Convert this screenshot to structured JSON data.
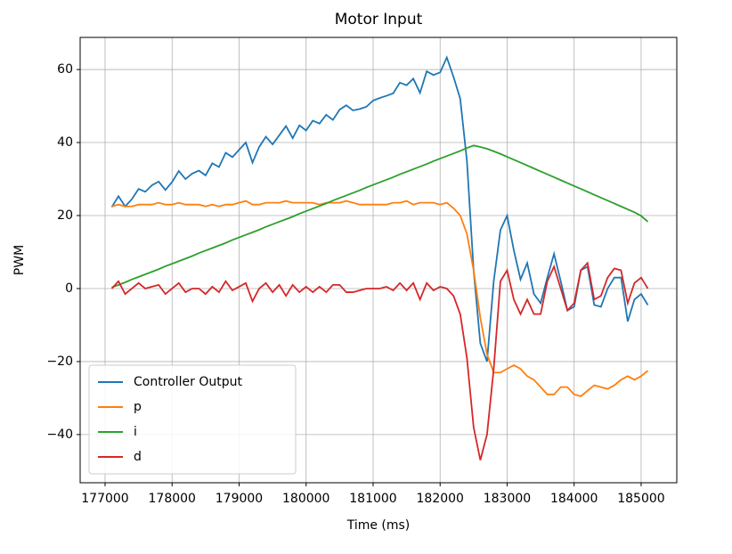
{
  "chart_data": {
    "type": "line",
    "title": "Motor Input",
    "x_label": "Time (ms)",
    "y_label": "PWM",
    "x": [
      177100,
      177200,
      177300,
      177400,
      177500,
      177600,
      177700,
      177800,
      177900,
      178000,
      178100,
      178200,
      178300,
      178400,
      178500,
      178600,
      178700,
      178800,
      178900,
      179000,
      179100,
      179200,
      179300,
      179400,
      179500,
      179600,
      179700,
      179800,
      179900,
      180000,
      180100,
      180200,
      180300,
      180400,
      180500,
      180600,
      180700,
      180800,
      180900,
      181000,
      181100,
      181200,
      181300,
      181400,
      181500,
      181600,
      181700,
      181800,
      181900,
      182000,
      182100,
      182200,
      182300,
      182400,
      182500,
      182600,
      182700,
      182800,
      182900,
      183000,
      183100,
      183200,
      183300,
      183400,
      183500,
      183600,
      183700,
      183800,
      183900,
      184000,
      184100,
      184200,
      184300,
      184400,
      184500,
      184600,
      184700,
      184800,
      184900,
      185000,
      185100
    ],
    "series": [
      {
        "name": "Controller Output",
        "color": "#1f77b4",
        "values": [
          22.3,
          25.3,
          22.5,
          24.5,
          27.3,
          26.5,
          28.3,
          29.3,
          27.0,
          29.2,
          32.2,
          30.0,
          31.5,
          32.3,
          31.0,
          34.3,
          33.3,
          37.2,
          36.0,
          38.0,
          40.0,
          34.5,
          38.8,
          41.6,
          39.5,
          42.0,
          44.5,
          41.2,
          44.7,
          43.3,
          46.0,
          45.2,
          47.6,
          46.2,
          49.0,
          50.2,
          48.8,
          49.2,
          49.8,
          51.5,
          52.2,
          52.8,
          53.5,
          56.4,
          55.7,
          57.5,
          53.6,
          59.5,
          58.5,
          59.2,
          63.3,
          58,
          52,
          35,
          5,
          -15,
          -20,
          2,
          16,
          20,
          10.5,
          2.5,
          7,
          -1.5,
          -4,
          3,
          9.5,
          2,
          -6,
          -5,
          5,
          6,
          -4.5,
          -5,
          0,
          3,
          3,
          -9,
          -3,
          -1.5,
          -4.5
        ]
      },
      {
        "name": "p",
        "color": "#ff7f0e",
        "values": [
          22.5,
          23,
          22.5,
          22.5,
          23,
          23,
          23,
          23.5,
          23,
          23,
          23.5,
          23,
          23,
          23,
          22.5,
          23,
          22.5,
          23,
          23,
          23.5,
          24,
          23,
          23,
          23.5,
          23.5,
          23.5,
          24,
          23.5,
          23.5,
          23.5,
          23.5,
          23,
          23.5,
          23.5,
          23.5,
          24,
          23.5,
          23,
          23,
          23,
          23,
          23,
          23.5,
          23.5,
          24,
          23,
          23.5,
          23.5,
          23.5,
          23,
          23.5,
          22,
          20,
          15,
          5,
          -8,
          -18,
          -23,
          -23,
          -22,
          -21,
          -22,
          -24,
          -25,
          -27,
          -29,
          -29,
          -27,
          -27,
          -29,
          -29.5,
          -28,
          -26.5,
          -27,
          -27.5,
          -26.5,
          -25,
          -24,
          -25,
          -24,
          -22.5
        ]
      },
      {
        "name": "i",
        "color": "#2ca02c",
        "values": [
          0.3,
          1.0,
          1.7,
          2.5,
          3.2,
          3.9,
          4.6,
          5.3,
          6.1,
          6.8,
          7.5,
          8.2,
          8.9,
          9.7,
          10.4,
          11.1,
          11.8,
          12.5,
          13.3,
          14.0,
          14.7,
          15.4,
          16.1,
          16.9,
          17.6,
          18.3,
          19.0,
          19.7,
          20.5,
          21.2,
          21.9,
          22.6,
          23.3,
          24.1,
          24.8,
          25.5,
          26.2,
          26.9,
          27.7,
          28.4,
          29.1,
          29.8,
          30.5,
          31.3,
          32.0,
          32.7,
          33.4,
          34.1,
          34.9,
          35.6,
          36.3,
          37.0,
          37.7,
          38.5,
          39.2,
          38.8,
          38.3,
          37.6,
          36.9,
          36.1,
          35.3,
          34.5,
          33.7,
          32.9,
          32.1,
          31.3,
          30.5,
          29.7,
          28.9,
          28.1,
          27.3,
          26.5,
          25.7,
          24.9,
          24.1,
          23.3,
          22.5,
          21.7,
          20.9,
          19.9,
          18.3
        ]
      },
      {
        "name": "d",
        "color": "#d62728",
        "values": [
          0,
          2,
          -1.5,
          0,
          1.5,
          0,
          0.5,
          1,
          -1.5,
          0,
          1.5,
          -1,
          0,
          0,
          -1.5,
          0.5,
          -1,
          2,
          -0.5,
          0.5,
          1.5,
          -3.5,
          0,
          1.5,
          -1,
          1,
          -2,
          1,
          -1,
          0.5,
          -1,
          0.5,
          -1,
          1,
          1,
          -1,
          -1,
          -0.5,
          0,
          0,
          0,
          0.5,
          -0.5,
          1.5,
          -0.5,
          1.5,
          -3,
          1.5,
          -0.5,
          0.5,
          0,
          -2,
          -7,
          -19,
          -38,
          -47,
          -40,
          -22,
          2,
          5,
          -3,
          -7,
          -3,
          -7,
          -7,
          2,
          6,
          0,
          -6,
          -4,
          5,
          7,
          -3,
          -2,
          3,
          5.5,
          5,
          -4,
          1.5,
          3,
          0
        ]
      }
    ],
    "xlim": [
      176628,
      185532
    ],
    "ylim": [
      -53.2,
      68.8
    ],
    "xticks": [
      177000,
      178000,
      179000,
      180000,
      181000,
      182000,
      183000,
      184000,
      185000
    ],
    "yticks": [
      {
        "value": -40,
        "label": "−40"
      },
      {
        "value": -20,
        "label": "−20"
      },
      0,
      20,
      40,
      60
    ],
    "grid": true,
    "legend": "lower left"
  }
}
